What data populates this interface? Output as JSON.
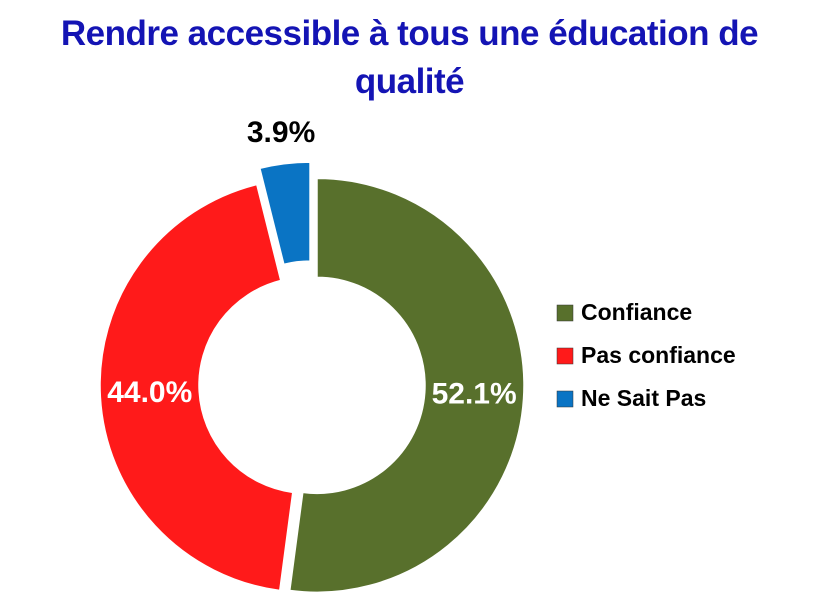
{
  "chart_data": {
    "type": "doughnut",
    "title": "Rendre accessible à tous une éducation de qualité",
    "categories": [
      "Confiance",
      "Pas confiance",
      "Ne Sait Pas"
    ],
    "values": [
      52.1,
      44.0,
      3.9
    ],
    "value_labels": [
      "52.1%",
      "44.0%",
      "3.9%"
    ],
    "colors": [
      "#58702c",
      "#ff1a1a",
      "#0a74c4"
    ],
    "legend": "right"
  }
}
